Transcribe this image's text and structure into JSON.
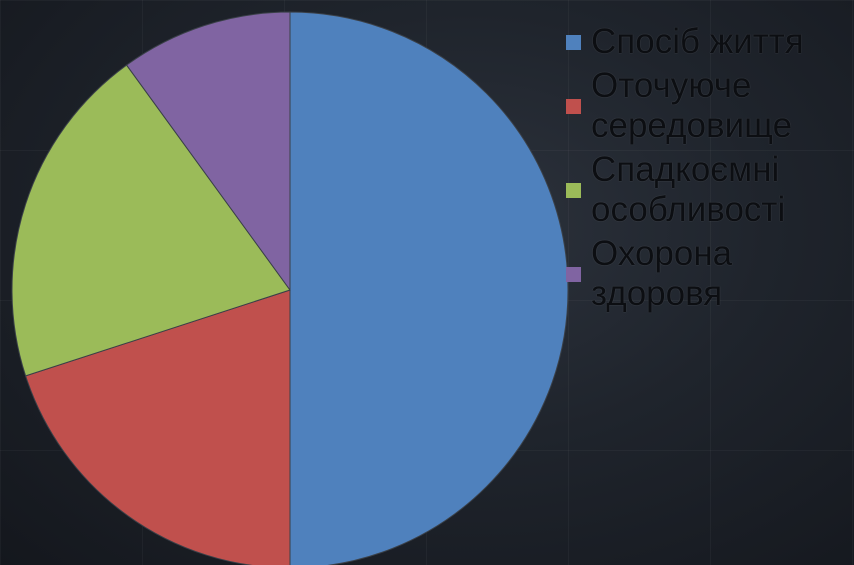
{
  "chart_data": {
    "type": "pie",
    "title": "",
    "legend_position": "right",
    "slices": [
      {
        "label": "Спосіб життя",
        "value": 50,
        "color": "#4f81bd"
      },
      {
        "label": "Оточуюче середовище",
        "value": 20,
        "color": "#c0504d"
      },
      {
        "label": "Спадкоємні особливості",
        "value": 20,
        "color": "#9bbb59"
      },
      {
        "label": "Охорона здоровя",
        "value": 10,
        "color": "#8064a2"
      }
    ]
  },
  "legend": {
    "items": [
      {
        "label": "Спосіб життя",
        "color": "#4f81bd"
      },
      {
        "label": "Оточуюче середовище",
        "color": "#c0504d"
      },
      {
        "label": "Спадкоємні особливості",
        "color": "#9bbb59"
      },
      {
        "label": "Охорона здоровя",
        "color": "#8064a2"
      }
    ]
  }
}
